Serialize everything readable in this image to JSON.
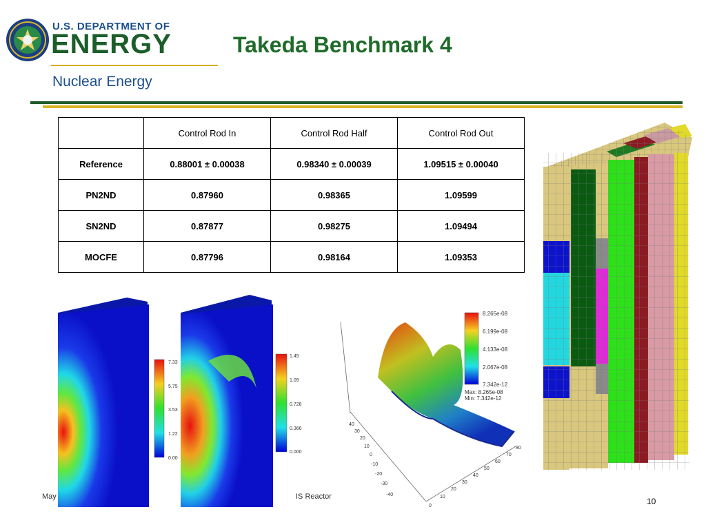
{
  "header": {
    "org_top": "U.S. DEPARTMENT OF",
    "org_main": "ENERGY",
    "org_sub": "Nuclear Energy",
    "seal_icon": "doe-seal-icon"
  },
  "slide": {
    "title": "Takeda Benchmark 4",
    "colors": {
      "title": "#1f6b2a",
      "rule_green": "#1e5a2a",
      "rule_gold": "#d8b424"
    }
  },
  "table": {
    "columns": [
      "",
      "Control Rod In",
      "Control Rod Half",
      "Control Rod Out"
    ],
    "rows": [
      {
        "label": "Reference",
        "values": [
          "0.88001 ± 0.00038",
          "0.98340 ± 0.00039",
          "1.09515 ± 0.00040"
        ]
      },
      {
        "label": "PN2ND",
        "values": [
          "0.87960",
          "0.98365",
          "1.09599"
        ]
      },
      {
        "label": "SN2ND",
        "values": [
          "0.87877",
          "0.98275",
          "1.09494"
        ]
      },
      {
        "label": "MOCFE",
        "values": [
          "0.87796",
          "0.98164",
          "1.09353"
        ]
      }
    ]
  },
  "plots": {
    "flux_a_legend": [
      "7.33",
      "5.75",
      "3.53",
      "1.22",
      "0.00"
    ],
    "flux_b_legend": [
      "1.45",
      "1.09",
      "0.728",
      "0.366",
      "0.000"
    ],
    "surface_legend": [
      "8.265e-08",
      "6.199e-08",
      "4.133e-08",
      "2.067e-08",
      "7.342e-12"
    ],
    "surface_max": "Max:  8.265e-08",
    "surface_min": "Min:  7.342e-12",
    "y_ticks": [
      "40",
      "30",
      "20",
      "10",
      "0",
      "-10",
      "-20",
      "-30",
      "-40"
    ],
    "x_ticks": [
      "0",
      "10",
      "20",
      "30",
      "40",
      "50",
      "60",
      "70",
      "80"
    ]
  },
  "footer": {
    "date": "May",
    "center": "IS Reactor",
    "page": "10"
  }
}
